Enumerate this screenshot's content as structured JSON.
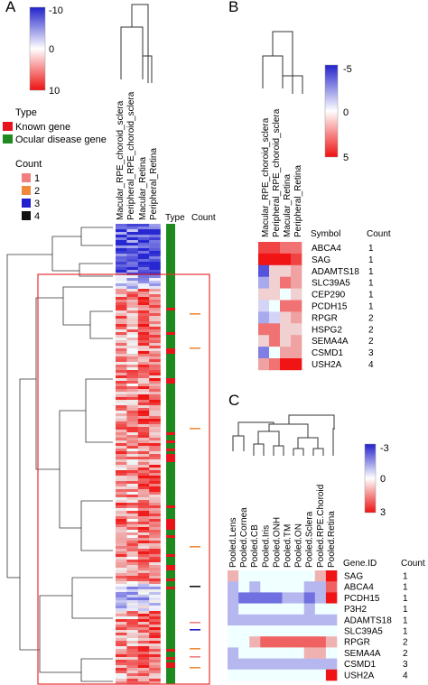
{
  "panels": {
    "A": {
      "letter": "A",
      "scale": {
        "top": "-10",
        "mid": "0",
        "bottom": "10"
      },
      "type_legend": {
        "title": "Type",
        "items": [
          {
            "label": "Known gene",
            "color": "#e8141b"
          },
          {
            "label": "Ocular disease gene",
            "color": "#1f8a1f"
          }
        ]
      },
      "count_legend": {
        "title": "Count",
        "items": [
          {
            "label": "1",
            "color": "#f08080"
          },
          {
            "label": "2",
            "color": "#f08a3a"
          },
          {
            "label": "3",
            "color": "#1f1fd0"
          },
          {
            "label": "4",
            "color": "#111111"
          }
        ]
      },
      "columns": [
        "Macular_RPE_choroid_sclera",
        "Peripheral_RPE_choroid_sclera",
        "Macular_Retina",
        "Peripheral_Retina"
      ],
      "side_headers": {
        "type": "Type",
        "count": "Count"
      }
    },
    "B": {
      "letter": "B",
      "scale": {
        "top": "-5",
        "mid": "0",
        "bottom": "5"
      },
      "columns": [
        "Macular_RPE_choroid_sclera",
        "Peripheral_RPE_choroid_sclera",
        "Macular_Retina",
        "Peripheral_Retina"
      ],
      "headers": {
        "symbol": "Symbol",
        "count": "Count"
      },
      "rows": [
        {
          "symbol": "ABCA4",
          "count": "1"
        },
        {
          "symbol": "SAG",
          "count": "1"
        },
        {
          "symbol": "ADAMTS18",
          "count": "1"
        },
        {
          "symbol": "SLC39A5",
          "count": "1"
        },
        {
          "symbol": "CEP290",
          "count": "1"
        },
        {
          "symbol": "PCDH15",
          "count": "1"
        },
        {
          "symbol": "RPGR",
          "count": "2"
        },
        {
          "symbol": "HSPG2",
          "count": "2"
        },
        {
          "symbol": "SEMA4A",
          "count": "2"
        },
        {
          "symbol": "CSMD1",
          "count": "3"
        },
        {
          "symbol": "USH2A",
          "count": "4"
        }
      ]
    },
    "C": {
      "letter": "C",
      "scale": {
        "top": "-3",
        "mid": "0",
        "bottom": "3"
      },
      "columns": [
        "Pooled.Lens",
        "Pooled.Cornea",
        "Pooled.CB",
        "Pooled.Iris",
        "Pooled.ONH",
        "Pooled.TM",
        "Pooled.ON",
        "Pooled.Sclera",
        "Pooled.RPE.Choroid",
        "Pooled.Retina"
      ],
      "headers": {
        "gene": "Gene.ID",
        "count": "Count"
      },
      "rows": [
        {
          "symbol": "SAG",
          "count": "1"
        },
        {
          "symbol": "ABCA4",
          "count": "1"
        },
        {
          "symbol": "PCDH15",
          "count": "1"
        },
        {
          "symbol": "P3H2",
          "count": "1"
        },
        {
          "symbol": "ADAMTS18",
          "count": "1"
        },
        {
          "symbol": "SLC39A5",
          "count": "1"
        },
        {
          "symbol": "RPGR",
          "count": "2"
        },
        {
          "symbol": "SEMA4A",
          "count": "2"
        },
        {
          "symbol": "CSMD1",
          "count": "3"
        },
        {
          "symbol": "USH2A",
          "count": "4"
        }
      ]
    }
  },
  "heatmap_B": [
    [
      4,
      4,
      3,
      3
    ],
    [
      5,
      5,
      5,
      4
    ],
    [
      -4,
      1,
      1,
      2
    ],
    [
      -2,
      1,
      3,
      2
    ],
    [
      1,
      1,
      0,
      1
    ],
    [
      -1,
      0,
      3,
      3
    ],
    [
      -2,
      -1,
      1,
      2
    ],
    [
      3,
      3,
      1,
      1
    ],
    [
      1,
      3,
      1,
      2
    ],
    [
      -3,
      0,
      2,
      2
    ],
    [
      2,
      3,
      5,
      5
    ]
  ],
  "heatmap_C": [
    [
      1,
      0,
      0,
      0,
      0,
      0,
      0,
      0,
      1,
      3
    ],
    [
      -1,
      0,
      -1,
      0,
      0,
      0,
      0,
      -1,
      -1,
      2
    ],
    [
      -1,
      -2,
      -2,
      -2,
      -2,
      -1,
      -1,
      -2,
      -1,
      3
    ],
    [
      -1,
      0,
      0,
      0,
      0,
      0,
      0,
      -1,
      0,
      0
    ],
    [
      -1,
      -1,
      -1,
      -1,
      -1,
      -1,
      -1,
      -1,
      -1,
      -1
    ],
    [
      0,
      0,
      0,
      0,
      0,
      0,
      0,
      0,
      0,
      0
    ],
    [
      0,
      0,
      1,
      2,
      2,
      2,
      2,
      2,
      2,
      1
    ],
    [
      -1,
      0,
      0,
      0,
      0,
      0,
      0,
      1,
      1,
      0
    ],
    [
      -1,
      -1,
      -1,
      -1,
      -1,
      -1,
      -1,
      -1,
      -1,
      -1
    ],
    [
      0,
      0,
      0,
      0,
      0,
      0,
      0,
      0,
      0,
      3
    ]
  ]
}
